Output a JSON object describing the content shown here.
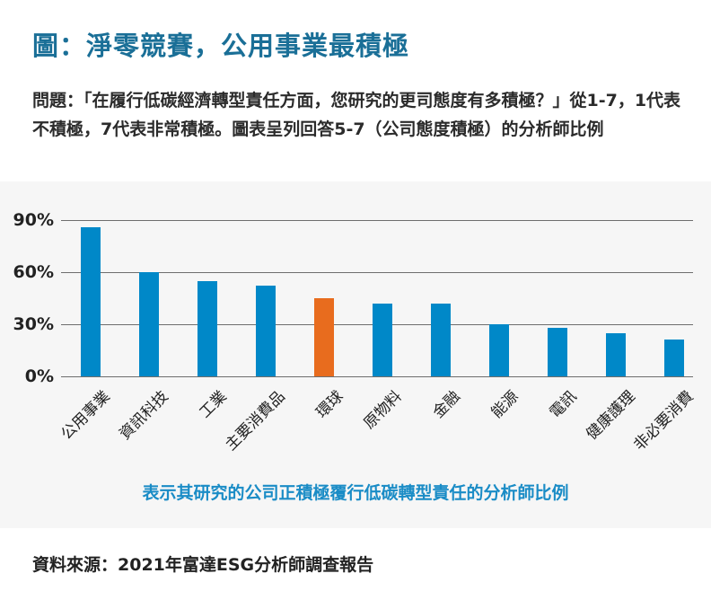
{
  "header": {
    "title": "圖：淨零競賽，公用事業最積極",
    "question": "問題：「在履行低碳經濟轉型責任方面，您研究的更司態度有多積極？」從1-7，1代表不積極，7代表非常積極。圖表呈列回答5-7（公司態度積極）的分析師比例"
  },
  "colors": {
    "title": "#1a6f97",
    "bar_default": "#0088c8",
    "bar_highlight": "#e86c1e",
    "panel_bg": "#f6f6f6",
    "caption": "#1a8cc6"
  },
  "chart_data": {
    "type": "bar",
    "title": "",
    "xlabel": "表示其研究的公司正積極覆行低碳轉型責任的分析師比例",
    "ylabel": "",
    "ylim": [
      0,
      90
    ],
    "yticks": [
      "0%",
      "30%",
      "60%",
      "90%"
    ],
    "grid": true,
    "categories": [
      "公用事業",
      "資訊科技",
      "工業",
      "主要消費品",
      "環球",
      "原物料",
      "金融",
      "能源",
      "電訊",
      "健康護理",
      "非必要消費"
    ],
    "values": [
      86,
      60,
      55,
      52,
      45,
      42,
      42,
      30,
      28,
      25,
      21
    ],
    "highlight": "環球"
  },
  "footer": {
    "caption": "表示其研究的公司正積極覆行低碳轉型責任的分析師比例",
    "source": "資料來源：2021年富達ESG分析師調查報告"
  }
}
